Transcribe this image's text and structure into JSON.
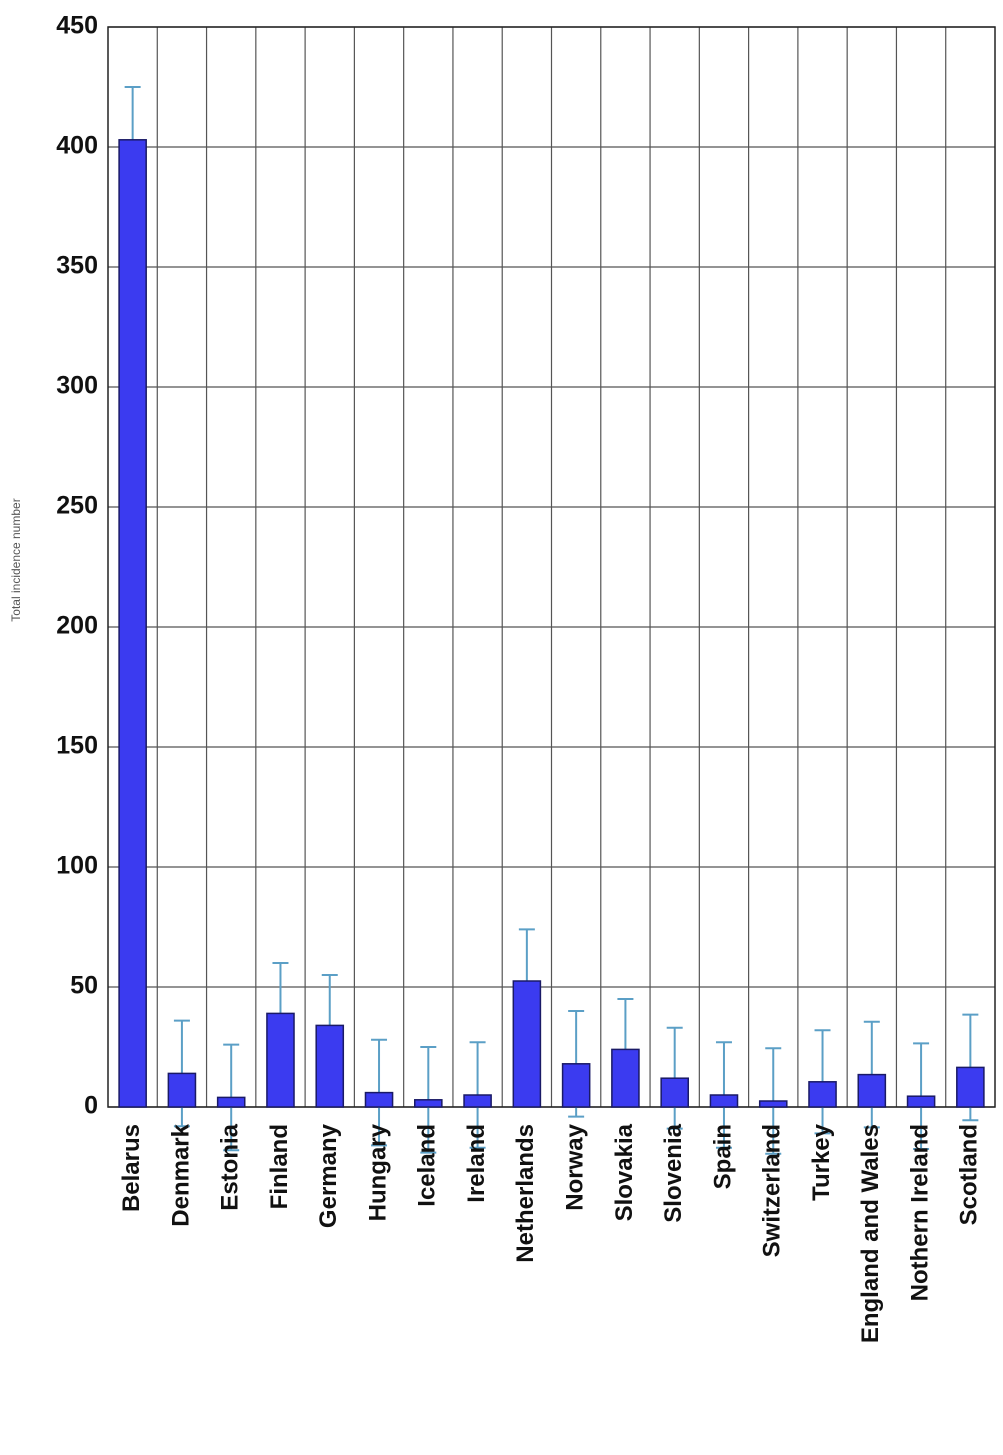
{
  "chart_data": {
    "type": "bar",
    "y_label": "Total incidence number",
    "categories": [
      "Belarus",
      "Denmark",
      "Estonia",
      "Finland",
      "Germany",
      "Hungary",
      "Iceland",
      "Ireland",
      "Netherlands",
      "Norway",
      "Slovakia",
      "Slovenia",
      "Spain",
      "Switzerland",
      "Turkey",
      "England and Wales",
      "Nothern Ireland",
      "Scotland"
    ],
    "values": [
      403,
      14,
      4,
      39,
      34,
      6,
      3,
      5,
      52.5,
      18,
      24,
      12,
      5,
      2.5,
      10.5,
      13.5,
      4.5,
      16.5
    ],
    "errors": [
      22,
      22,
      22,
      21,
      21,
      22,
      22,
      22,
      21.5,
      22,
      21,
      21,
      22,
      22,
      21.5,
      22,
      22,
      22
    ],
    "color": "#3b3bf0",
    "error_color": "#5b9fc6",
    "ylim": [
      0,
      450
    ],
    "yticks": [
      0,
      50,
      100,
      150,
      200,
      250,
      300,
      350,
      400,
      450
    ],
    "grid": true
  }
}
